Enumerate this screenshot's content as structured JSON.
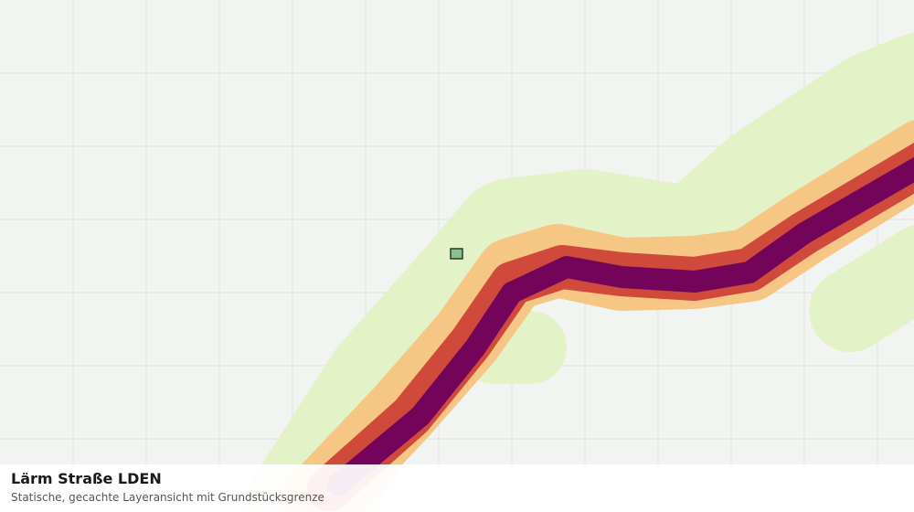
{
  "header": {
    "title": "Lärm Straße LDEN",
    "subtitle": "Statische, gecachte Layeransicht mit Grundstücksgrenze"
  }
}
